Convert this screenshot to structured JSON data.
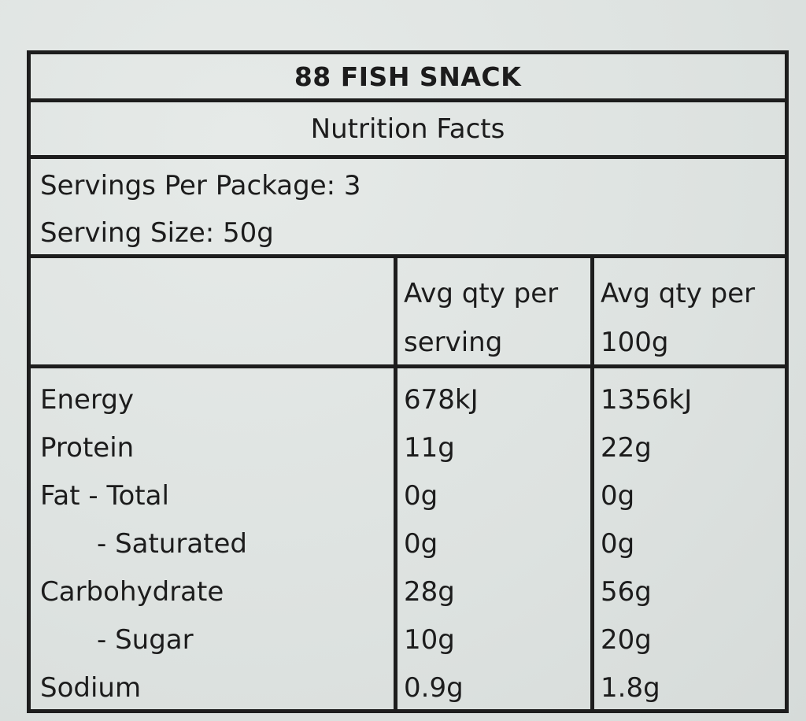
{
  "label": {
    "product_name": "88 FISH SNACK",
    "heading": "Nutrition Facts",
    "servings_per_package": "Servings Per Package: 3",
    "serving_size": "Serving Size: 50g",
    "columns": {
      "per_serving_line1": "Avg qty per",
      "per_serving_line2": "serving",
      "per_100g_line1": "Avg qty per",
      "per_100g_line2": "100g"
    },
    "rows": [
      {
        "name": "Energy",
        "per_serving": "678kJ",
        "per_100g": "1356kJ"
      },
      {
        "name": "Protein",
        "per_serving": "11g",
        "per_100g": "22g"
      },
      {
        "name": "Fat - Total",
        "per_serving": "0g",
        "per_100g": "0g"
      },
      {
        "name": "- Saturated",
        "per_serving": "0g",
        "per_100g": "0g"
      },
      {
        "name": "Carbohydrate",
        "per_serving": "28g",
        "per_100g": "56g"
      },
      {
        "name": "- Sugar",
        "per_serving": "10g",
        "per_100g": "20g"
      },
      {
        "name": "Sodium",
        "per_serving": "0.9g",
        "per_100g": "1.8g"
      }
    ]
  }
}
